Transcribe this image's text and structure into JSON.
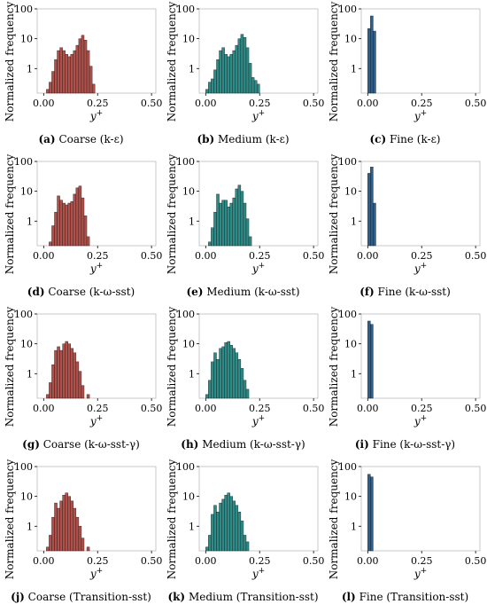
{
  "chart_data": [
    {
      "id": "a",
      "type": "bar",
      "caption_letter": "(a)",
      "caption_text": "Coarse (k-ε)",
      "color": "#b0504a",
      "bin_width": 0.0125,
      "bin_starts": [
        0.0125,
        0.025,
        0.0375,
        0.05,
        0.0625,
        0.075,
        0.0875,
        0.1,
        0.1125,
        0.125,
        0.1375,
        0.15,
        0.1625,
        0.175,
        0.1875,
        0.2,
        0.2125,
        0.225
      ],
      "values": [
        0.2,
        0.35,
        0.8,
        2,
        4,
        5,
        4,
        3,
        2.5,
        3,
        4,
        6,
        10,
        13,
        9,
        4,
        1.2,
        0.3
      ],
      "xlabel": "y+",
      "ylabel": "Normalized frequency",
      "yscale": "log",
      "ylim": [
        0.15,
        100
      ],
      "xlim": [
        -0.03,
        0.52
      ],
      "xticks": [
        "0.00",
        "0.25",
        "0.50"
      ],
      "yticks": [
        "1",
        "10",
        "100"
      ]
    },
    {
      "id": "b",
      "type": "bar",
      "caption_letter": "(b)",
      "caption_text": "Medium (k-ε)",
      "color": "#2e8b87",
      "bin_width": 0.0125,
      "bin_starts": [
        0.0,
        0.0125,
        0.025,
        0.0375,
        0.05,
        0.0625,
        0.075,
        0.0875,
        0.1,
        0.1125,
        0.125,
        0.1375,
        0.15,
        0.1625,
        0.175,
        0.1875,
        0.2,
        0.2125,
        0.225,
        0.2375
      ],
      "values": [
        0.2,
        0.35,
        0.45,
        0.9,
        2,
        4,
        5,
        3,
        2.5,
        3,
        4,
        6,
        10,
        14,
        11,
        5,
        1.5,
        0.5,
        0.4,
        0.3
      ],
      "xlabel": "y+",
      "ylabel": "Normalized frequency",
      "yscale": "log",
      "ylim": [
        0.15,
        100
      ],
      "xlim": [
        -0.03,
        0.52
      ],
      "xticks": [
        "0.00",
        "0.25",
        "0.50"
      ],
      "yticks": [
        "1",
        "10",
        "100"
      ]
    },
    {
      "id": "c",
      "type": "bar",
      "caption_letter": "(c)",
      "caption_text": "Fine (k-ε)",
      "color": "#2d5f8a",
      "bin_width": 0.0125,
      "bin_starts": [
        0.0,
        0.0125,
        0.025
      ],
      "values": [
        22,
        58,
        18
      ],
      "xlabel": "y+",
      "ylabel": "Normalized frequency",
      "yscale": "log",
      "ylim": [
        0.15,
        100
      ],
      "xlim": [
        -0.03,
        0.52
      ],
      "xticks": [
        "0.00",
        "0.25",
        "0.50"
      ],
      "yticks": [
        "1",
        "10",
        "100"
      ]
    },
    {
      "id": "d",
      "type": "bar",
      "caption_letter": "(d)",
      "caption_text": "Coarse (k-ω-sst)",
      "color": "#b0504a",
      "bin_width": 0.0125,
      "bin_starts": [
        0.025,
        0.0375,
        0.05,
        0.0625,
        0.075,
        0.0875,
        0.1,
        0.1125,
        0.125,
        0.1375,
        0.15,
        0.1625,
        0.175,
        0.1875,
        0.2
      ],
      "values": [
        0.2,
        0.7,
        2,
        7,
        5,
        4,
        3.5,
        4,
        4.5,
        8,
        13,
        15,
        6,
        1.5,
        0.3
      ],
      "xlabel": "y+",
      "ylabel": "Normalized frequency",
      "yscale": "log",
      "ylim": [
        0.15,
        100
      ],
      "xlim": [
        -0.03,
        0.52
      ],
      "xticks": [
        "0.00",
        "0.25",
        "0.50"
      ],
      "yticks": [
        "1",
        "10",
        "100"
      ]
    },
    {
      "id": "e",
      "type": "bar",
      "caption_letter": "(e)",
      "caption_text": "Medium (k-ω-sst)",
      "color": "#2e8b87",
      "bin_width": 0.0125,
      "bin_starts": [
        0.0125,
        0.025,
        0.0375,
        0.05,
        0.0625,
        0.075,
        0.0875,
        0.1,
        0.1125,
        0.125,
        0.1375,
        0.15,
        0.1625,
        0.175,
        0.1875,
        0.2
      ],
      "values": [
        0.2,
        0.6,
        2,
        8,
        4,
        5,
        5,
        3,
        4,
        6,
        12,
        16,
        10,
        4,
        1.2,
        0.3
      ],
      "xlabel": "y+",
      "ylabel": "Normalized frequency",
      "yscale": "log",
      "ylim": [
        0.15,
        100
      ],
      "xlim": [
        -0.03,
        0.52
      ],
      "xticks": [
        "0.00",
        "0.25",
        "0.50"
      ],
      "yticks": [
        "1",
        "10",
        "100"
      ]
    },
    {
      "id": "f",
      "type": "bar",
      "caption_letter": "(f)",
      "caption_text": "Fine (k-ω-sst)",
      "color": "#2d5f8a",
      "bin_width": 0.0125,
      "bin_starts": [
        0.0,
        0.0125,
        0.025
      ],
      "values": [
        40,
        65,
        4
      ],
      "xlabel": "y+",
      "ylabel": "Normalized frequency",
      "yscale": "log",
      "ylim": [
        0.15,
        100
      ],
      "xlim": [
        -0.03,
        0.52
      ],
      "xticks": [
        "0.00",
        "0.25",
        "0.50"
      ],
      "yticks": [
        "1",
        "10",
        "100"
      ]
    },
    {
      "id": "g",
      "type": "bar",
      "caption_letter": "(g)",
      "caption_text": "Coarse (k-ω-sst-γ)",
      "color": "#b0504a",
      "bin_width": 0.0125,
      "bin_starts": [
        0.0125,
        0.025,
        0.0375,
        0.05,
        0.0625,
        0.075,
        0.0875,
        0.1,
        0.1125,
        0.125,
        0.1375,
        0.15,
        0.1625,
        0.175,
        0.2
      ],
      "values": [
        0.2,
        0.5,
        2,
        6,
        8,
        6,
        10,
        12,
        10,
        7,
        5,
        2.5,
        1.2,
        0.4,
        0.2
      ],
      "xlabel": "y+",
      "ylabel": "Normalized frequency",
      "yscale": "log",
      "ylim": [
        0.15,
        100
      ],
      "xlim": [
        -0.03,
        0.52
      ],
      "xticks": [
        "0.00",
        "0.25",
        "0.50"
      ],
      "yticks": [
        "1",
        "10",
        "100"
      ]
    },
    {
      "id": "h",
      "type": "bar",
      "caption_letter": "(h)",
      "caption_text": "Medium (k-ω-sst-γ)",
      "color": "#2e8b87",
      "bin_width": 0.0125,
      "bin_starts": [
        0.0,
        0.0125,
        0.025,
        0.0375,
        0.05,
        0.0625,
        0.075,
        0.0875,
        0.1,
        0.1125,
        0.125,
        0.1375,
        0.15,
        0.1625,
        0.175,
        0.1875
      ],
      "values": [
        0.2,
        0.6,
        2.5,
        5,
        3,
        7,
        8,
        11,
        12,
        9,
        7,
        5,
        3,
        1.5,
        0.6,
        0.3
      ],
      "xlabel": "y+",
      "ylabel": "Normalized frequency",
      "yscale": "log",
      "ylim": [
        0.15,
        100
      ],
      "xlim": [
        -0.03,
        0.52
      ],
      "xticks": [
        "0.00",
        "0.25",
        "0.50"
      ],
      "yticks": [
        "1",
        "10",
        "100"
      ]
    },
    {
      "id": "i",
      "type": "bar",
      "caption_letter": "(i)",
      "caption_text": "Fine (k-ω-sst-γ)",
      "color": "#2d5f8a",
      "bin_width": 0.0125,
      "bin_starts": [
        0.0,
        0.0125
      ],
      "values": [
        58,
        45
      ],
      "xlabel": "y+",
      "ylabel": "Normalized frequency",
      "yscale": "log",
      "ylim": [
        0.15,
        100
      ],
      "xlim": [
        -0.03,
        0.52
      ],
      "xticks": [
        "0.00",
        "0.25",
        "0.50"
      ],
      "yticks": [
        "1",
        "10",
        "100"
      ]
    },
    {
      "id": "j",
      "type": "bar",
      "caption_letter": "(j)",
      "caption_text": "Coarse (Transition-sst)",
      "color": "#b0504a",
      "bin_width": 0.0125,
      "bin_starts": [
        0.0125,
        0.025,
        0.0375,
        0.05,
        0.0625,
        0.075,
        0.0875,
        0.1,
        0.1125,
        0.125,
        0.1375,
        0.15,
        0.1625,
        0.175,
        0.2
      ],
      "values": [
        0.2,
        0.5,
        2,
        6,
        4,
        7,
        11,
        13,
        10,
        7,
        4,
        2,
        1,
        0.4,
        0.2
      ],
      "xlabel": "y+",
      "ylabel": "Normalized frequency",
      "yscale": "log",
      "ylim": [
        0.15,
        100
      ],
      "xlim": [
        -0.03,
        0.52
      ],
      "xticks": [
        "0.00",
        "0.25",
        "0.50"
      ],
      "yticks": [
        "1",
        "10",
        "100"
      ]
    },
    {
      "id": "k",
      "type": "bar",
      "caption_letter": "(k)",
      "caption_text": "Medium (Transition-sst)",
      "color": "#2e8b87",
      "bin_width": 0.0125,
      "bin_starts": [
        0.0,
        0.0125,
        0.025,
        0.0375,
        0.05,
        0.0625,
        0.075,
        0.0875,
        0.1,
        0.1125,
        0.125,
        0.1375,
        0.15,
        0.1625,
        0.175,
        0.1875
      ],
      "values": [
        0.2,
        0.5,
        2.5,
        5,
        3,
        6,
        8,
        11,
        13,
        10,
        7,
        5,
        3,
        1.5,
        0.5,
        0.3
      ],
      "xlabel": "y+",
      "ylabel": "Normalized frequency",
      "yscale": "log",
      "ylim": [
        0.15,
        100
      ],
      "xlim": [
        -0.03,
        0.52
      ],
      "xticks": [
        "0.00",
        "0.25",
        "0.50"
      ],
      "yticks": [
        "1",
        "10",
        "100"
      ]
    },
    {
      "id": "l",
      "type": "bar",
      "caption_letter": "(l)",
      "caption_text": "Fine (Transition-sst)",
      "color": "#2d5f8a",
      "bin_width": 0.0125,
      "bin_starts": [
        0.0,
        0.0125
      ],
      "values": [
        55,
        45
      ],
      "xlabel": "y+",
      "ylabel": "Normalized frequency",
      "yscale": "log",
      "ylim": [
        0.15,
        100
      ],
      "xlim": [
        -0.03,
        0.52
      ],
      "xticks": [
        "0.00",
        "0.25",
        "0.50"
      ],
      "yticks": [
        "1",
        "10",
        "100"
      ]
    }
  ]
}
